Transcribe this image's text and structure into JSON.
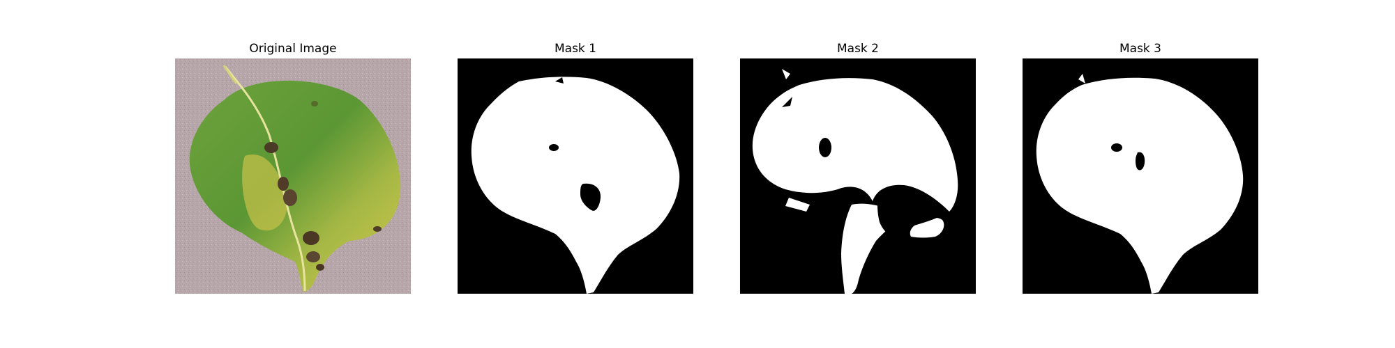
{
  "figure": {
    "panels": [
      {
        "title": "Original Image",
        "kind": "photo"
      },
      {
        "title": "Mask 1",
        "kind": "mask"
      },
      {
        "title": "Mask 2",
        "kind": "mask"
      },
      {
        "title": "Mask 3",
        "kind": "mask"
      }
    ],
    "colors": {
      "mask_background": "#000000",
      "mask_foreground": "#ffffff",
      "photo_background": "#b5a5a8",
      "leaf_green": "#5f9a36",
      "leaf_yellow": "#c7c445",
      "lesion": "#4d3b26"
    }
  }
}
